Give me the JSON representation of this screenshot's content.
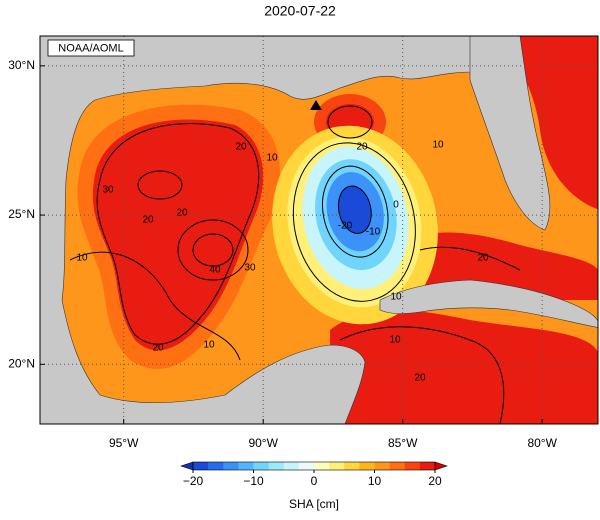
{
  "title": "2020-07-22",
  "credit": "NOAA/AOML",
  "map": {
    "lonlim": [
      -98,
      -78
    ],
    "latlim": [
      18,
      31
    ],
    "grid": true,
    "lon_ticks": [
      {
        "value": -95,
        "label": "95°W"
      },
      {
        "value": -90,
        "label": "90°W"
      },
      {
        "value": -85,
        "label": "85°W"
      },
      {
        "value": -80,
        "label": "80°W"
      }
    ],
    "lat_ticks": [
      {
        "value": 30,
        "label": "30°N"
      },
      {
        "value": 25,
        "label": "25°N"
      },
      {
        "value": 20,
        "label": "20°N"
      }
    ],
    "contour_labels": [
      "30",
      "20",
      "20",
      "10",
      "10",
      "20",
      "40",
      "30",
      "20",
      "20",
      "10",
      "20",
      "0",
      "-10",
      "-20",
      "10",
      "10",
      "20",
      "10"
    ]
  },
  "colorbar": {
    "label": "SHA [cm]",
    "lim": [
      -20,
      20
    ],
    "ticks": [
      {
        "value": -20,
        "label": "−20"
      },
      {
        "value": -10,
        "label": "−10"
      },
      0,
      10,
      20
    ],
    "colors": [
      "#1a4ad8",
      "#2a6cf0",
      "#3c92f8",
      "#52b6fc",
      "#70d4fc",
      "#9ce8fc",
      "#c8f4fc",
      "#e8fcfc",
      "#fffcc0",
      "#fff07a",
      "#ffd63c",
      "#ffb41e",
      "#ff961c",
      "#ff7012",
      "#f84410",
      "#e81c10"
    ],
    "under": "#1034b4",
    "over": "#d20000"
  }
}
